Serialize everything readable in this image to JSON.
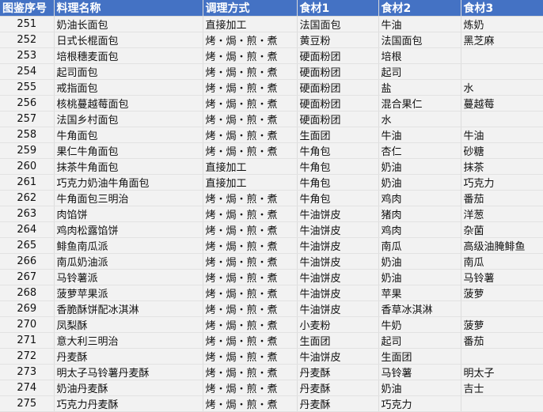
{
  "header": {
    "colors": {
      "header_bg": "#4472c4",
      "header_text": "#ffffff"
    },
    "columns": [
      "图鉴序号",
      "料理名称",
      "调理方式",
      "食材1",
      "食材2",
      "食材3"
    ]
  },
  "rows": [
    [
      "251",
      "奶油长面包",
      "直接加工",
      "法国面包",
      "牛油",
      "炼奶"
    ],
    [
      "252",
      "日式长棍面包",
      "烤・焗・煎・煮",
      "黄豆粉",
      "法国面包",
      "黑芝麻"
    ],
    [
      "253",
      "培根穗麦面包",
      "烤・焗・煎・煮",
      "硬面粉团",
      "培根",
      ""
    ],
    [
      "254",
      "起司面包",
      "烤・焗・煎・煮",
      "硬面粉团",
      "起司",
      ""
    ],
    [
      "255",
      "戒指面包",
      "烤・焗・煎・煮",
      "硬面粉团",
      "盐",
      "水"
    ],
    [
      "256",
      "核桃蔓越莓面包",
      "烤・焗・煎・煮",
      "硬面粉团",
      "混合果仁",
      "蔓越莓"
    ],
    [
      "257",
      "法国乡村面包",
      "烤・焗・煎・煮",
      "硬面粉团",
      "水",
      ""
    ],
    [
      "258",
      "牛角面包",
      "烤・焗・煎・煮",
      "生面团",
      "牛油",
      "牛油"
    ],
    [
      "259",
      "果仁牛角面包",
      "烤・焗・煎・煮",
      "牛角包",
      "杏仁",
      "砂糖"
    ],
    [
      "260",
      "抹茶牛角面包",
      "直接加工",
      "牛角包",
      "奶油",
      "抹茶"
    ],
    [
      "261",
      "巧克力奶油牛角面包",
      "直接加工",
      "牛角包",
      "奶油",
      "巧克力"
    ],
    [
      "262",
      "牛角面包三明治",
      "烤・焗・煎・煮",
      "牛角包",
      "鸡肉",
      "番茄"
    ],
    [
      "263",
      "肉馅饼",
      "烤・焗・煎・煮",
      "牛油饼皮",
      "猪肉",
      "洋葱"
    ],
    [
      "264",
      "鸡肉松露馅饼",
      "烤・焗・煎・煮",
      "牛油饼皮",
      "鸡肉",
      "杂菌"
    ],
    [
      "265",
      "鲱鱼南瓜派",
      "烤・焗・煎・煮",
      "牛油饼皮",
      "南瓜",
      "高级油腌鲱鱼"
    ],
    [
      "266",
      "南瓜奶油派",
      "烤・焗・煎・煮",
      "牛油饼皮",
      "奶油",
      "南瓜"
    ],
    [
      "267",
      "马铃薯派",
      "烤・焗・煎・煮",
      "牛油饼皮",
      "奶油",
      "马铃薯"
    ],
    [
      "268",
      "菠萝苹果派",
      "烤・焗・煎・煮",
      "牛油饼皮",
      "苹果",
      "菠萝"
    ],
    [
      "269",
      "香脆酥饼配冰淇淋",
      "烤・焗・煎・煮",
      "牛油饼皮",
      "香草冰淇淋",
      ""
    ],
    [
      "270",
      "凤梨酥",
      "烤・焗・煎・煮",
      "小麦粉",
      "牛奶",
      "菠萝"
    ],
    [
      "271",
      "意大利三明治",
      "烤・焗・煎・煮",
      "生面团",
      "起司",
      "番茄"
    ],
    [
      "272",
      "丹麦酥",
      "烤・焗・煎・煮",
      "牛油饼皮",
      "生面团",
      ""
    ],
    [
      "273",
      "明太子马铃薯丹麦酥",
      "烤・焗・煎・煮",
      "丹麦酥",
      "马铃薯",
      "明太子"
    ],
    [
      "274",
      "奶油丹麦酥",
      "烤・焗・煎・煮",
      "丹麦酥",
      "奶油",
      "吉士"
    ],
    [
      "275",
      "巧克力丹麦酥",
      "烤・焗・煎・煮",
      "丹麦酥",
      "巧克力",
      ""
    ]
  ]
}
